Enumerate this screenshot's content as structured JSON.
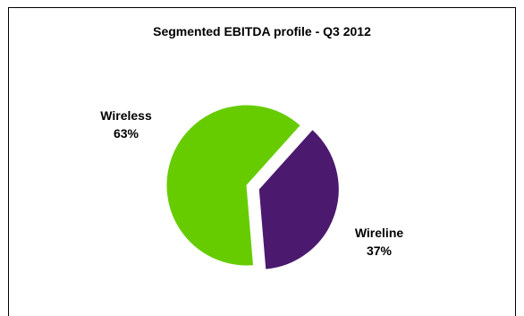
{
  "chart_data": {
    "type": "pie",
    "title": "Segmented EBITDA profile - Q3 2012",
    "slices": [
      {
        "label": "Wireless",
        "value": 63,
        "value_label": "63%",
        "color": "#66CC00",
        "exploded": false
      },
      {
        "label": "Wireline",
        "value": 37,
        "value_label": "37%",
        "color": "#4B1A6E",
        "exploded": true
      }
    ],
    "legend": "none",
    "data_labels": "outside"
  }
}
